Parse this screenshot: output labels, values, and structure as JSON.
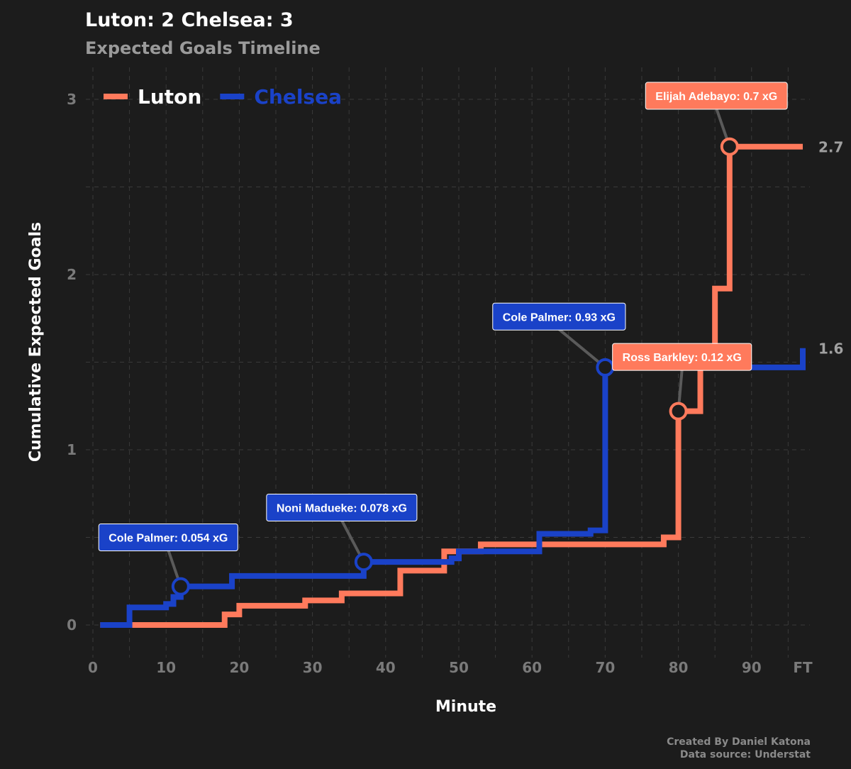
{
  "title": "Luton:  2 Chelsea: 3",
  "subtitle": "Expected Goals Timeline",
  "caption": {
    "line1": "Created By Daniel Katona",
    "line2": "Data source: Understat"
  },
  "colors": {
    "Luton": "#ff7a5c",
    "Chelsea": "#1a42c8",
    "background": "#1c1c1c",
    "grid": "#3a3a3a"
  },
  "chart_data": {
    "type": "line",
    "step": true,
    "xlabel": "Minute",
    "ylabel": "Cumulative Expected Goals",
    "xlim": [
      0,
      97
    ],
    "ylim": [
      -0.17,
      3.2
    ],
    "x_ticks": [
      0,
      10,
      20,
      30,
      40,
      50,
      60,
      70,
      80,
      90,
      97
    ],
    "x_tick_labels": [
      "0",
      "10",
      "20",
      "30",
      "40",
      "50",
      "60",
      "70",
      "80",
      "90",
      "FT"
    ],
    "y_ticks": [
      0,
      1,
      2,
      3
    ],
    "y_tick_labels": [
      "0",
      "1",
      "2",
      "3"
    ],
    "grid": true,
    "legend_position": "top-left",
    "series": [
      {
        "name": "Luton",
        "x": [
          1,
          18,
          20,
          29,
          34,
          42,
          48,
          53,
          78,
          80,
          81,
          83,
          85,
          87,
          97
        ],
        "y": [
          0,
          0.06,
          0.11,
          0.14,
          0.18,
          0.31,
          0.42,
          0.46,
          0.5,
          1.22,
          1.22,
          1.57,
          1.92,
          2.73,
          2.73
        ],
        "end_label": "2.7"
      },
      {
        "name": "Chelsea",
        "x": [
          1,
          5,
          10,
          11,
          12,
          19,
          37,
          49,
          50,
          61,
          68,
          70,
          97
        ],
        "y": [
          0,
          0.1,
          0.12,
          0.16,
          0.22,
          0.28,
          0.36,
          0.38,
          0.42,
          0.52,
          0.54,
          1.47,
          1.58
        ],
        "end_label": "1.6"
      }
    ],
    "annotations": [
      {
        "team": "Chelsea",
        "label": "Cole Palmer: 0.054 xG",
        "x": 12,
        "y": 0.22,
        "box_x": 10.3,
        "box_y": 0.5
      },
      {
        "team": "Chelsea",
        "label": "Noni Madueke: 0.078 xG",
        "x": 37,
        "y": 0.36,
        "box_x": 34,
        "box_y": 0.67
      },
      {
        "team": "Chelsea",
        "label": "Cole Palmer: 0.93 xG",
        "x": 70,
        "y": 1.47,
        "box_x": 63.7,
        "box_y": 1.76
      },
      {
        "team": "Luton",
        "label": "Ross Barkley: 0.12 xG",
        "x": 80,
        "y": 1.22,
        "box_x": 80.5,
        "box_y": 1.53
      },
      {
        "team": "Luton",
        "label": "Elijah Adebayo: 0.7 xG",
        "x": 87,
        "y": 2.73,
        "box_x": 85.2,
        "box_y": 3.02
      }
    ]
  }
}
